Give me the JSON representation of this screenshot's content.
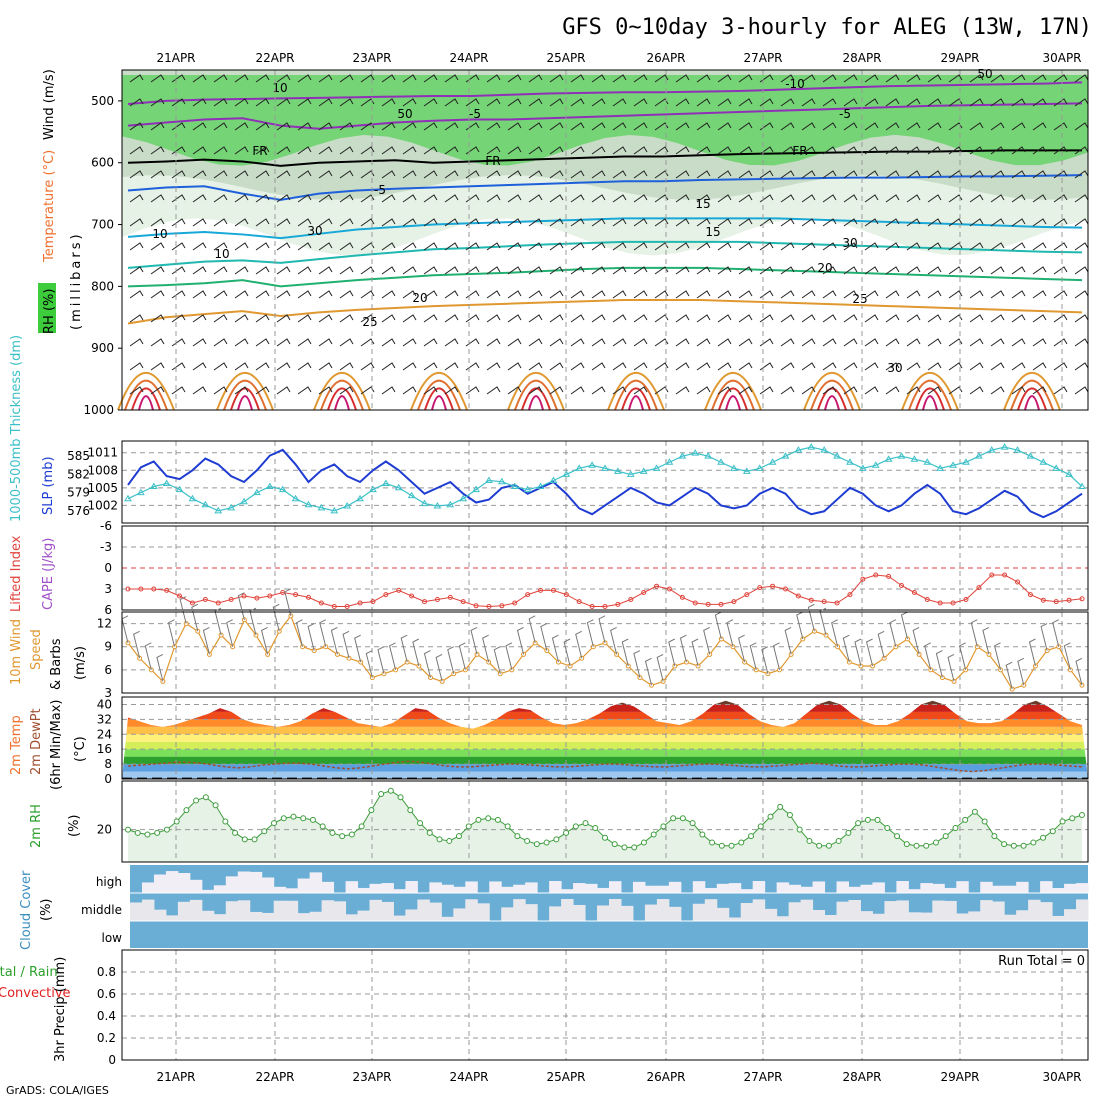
{
  "title": "GFS 0~10day 3-hourly for ALEG (13W, 17N)",
  "footer": "GrADS: COLA/IGES",
  "run_total": "Run Total = 0",
  "dates": [
    "21APR",
    "22APR",
    "23APR",
    "24APR",
    "25APR",
    "26APR",
    "27APR",
    "28APR",
    "29APR",
    "30APR"
  ],
  "colors": {
    "rh_green": "#3ccc3c",
    "slp": "#1e3cd2",
    "thickness": "#3cc0c8",
    "lifted": "#e0443c",
    "cape": "#a050c8",
    "wind": "#e09830",
    "rh2m": "#3c9c3c",
    "cloud": "#6aaed6",
    "temp_label": "#f07030",
    "precip_total": "#2ca02c",
    "precip_conv": "#e02020"
  },
  "chart_data": [
    {
      "type": "heatmap",
      "panel": "upper_air",
      "ylabel_parts": [
        "RH (%)",
        "Temperature (°C)",
        "Wind (m/s)",
        "(millibars)"
      ],
      "y_ticks": [
        "500",
        "600",
        "700",
        "800",
        "900",
        "1000"
      ],
      "ylim": [
        450,
        1000
      ],
      "contour_labels": [
        "10",
        "-5",
        "-10",
        "-5",
        "FR",
        "FR",
        "FR",
        "-5",
        "10",
        "15",
        "10",
        "15",
        "20",
        "25",
        "20",
        "25",
        "30",
        "50",
        "30",
        "30",
        "50"
      ],
      "isotherms": [
        {
          "label": "-10",
          "p": [
            505,
            500,
            498,
            497,
            496,
            495,
            494,
            493,
            492,
            492,
            490,
            488,
            487,
            486,
            486,
            485,
            484,
            482,
            480,
            478,
            476,
            475,
            474,
            473,
            472,
            470
          ]
        },
        {
          "label": "-5",
          "p": [
            540,
            535,
            530,
            528,
            540,
            545,
            540,
            535,
            532,
            530,
            530,
            528,
            526,
            524,
            522,
            520,
            518,
            516,
            514,
            512,
            510,
            508,
            507,
            506,
            505,
            504
          ]
        },
        {
          "label": "FR",
          "p": [
            600,
            598,
            595,
            598,
            605,
            600,
            598,
            596,
            600,
            598,
            596,
            594,
            592,
            590,
            590,
            588,
            586,
            585,
            584,
            583,
            582,
            582,
            581,
            580,
            580,
            580
          ]
        },
        {
          "label": "-5",
          "p": [
            645,
            640,
            638,
            650,
            660,
            650,
            645,
            642,
            640,
            638,
            636,
            634,
            632,
            630,
            630,
            628,
            627,
            626,
            625,
            624,
            624,
            623,
            622,
            622,
            621,
            620
          ]
        },
        {
          "label": "10",
          "p": [
            720,
            715,
            712,
            716,
            722,
            715,
            708,
            704,
            700,
            698,
            696,
            694,
            692,
            690,
            690,
            690,
            690,
            690,
            692,
            694,
            696,
            698,
            700,
            702,
            704,
            705
          ]
        },
        {
          "label": "15",
          "p": [
            770,
            765,
            760,
            758,
            762,
            756,
            750,
            745,
            740,
            738,
            735,
            732,
            730,
            728,
            728,
            728,
            728,
            730,
            732,
            734,
            736,
            738,
            740,
            742,
            744,
            745
          ]
        },
        {
          "label": "20",
          "p": [
            800,
            798,
            795,
            790,
            800,
            795,
            790,
            786,
            782,
            780,
            778,
            775,
            772,
            770,
            770,
            770,
            772,
            774,
            776,
            778,
            780,
            782,
            784,
            786,
            788,
            790
          ]
        },
        {
          "label": "25",
          "p": [
            860,
            850,
            845,
            840,
            848,
            842,
            838,
            835,
            832,
            830,
            828,
            826,
            824,
            822,
            822,
            822,
            824,
            826,
            828,
            830,
            832,
            834,
            836,
            838,
            840,
            842
          ]
        }
      ]
    },
    {
      "type": "line",
      "panel": "slp_thickness",
      "ylabel_left": "1000-500mb Thickness (dm)",
      "ylabel_right": "SLP (mb)",
      "left_ticks": [
        "585",
        "582",
        "579",
        "576"
      ],
      "right_ticks": [
        "1011",
        "1008",
        "1005",
        "1002"
      ],
      "series": [
        {
          "name": "SLP (mb)",
          "unit": "mb",
          "values": [
            1005.5,
            1008.5,
            1009.5,
            1007,
            1006.5,
            1008,
            1010,
            1009,
            1007,
            1006,
            1008,
            1010.5,
            1011.5,
            1009,
            1006,
            1008,
            1009,
            1007,
            1006,
            1008,
            1009.5,
            1008,
            1006,
            1004,
            1005,
            1006,
            1004,
            1002.5,
            1003,
            1005,
            1005.5,
            1004,
            1005,
            1006,
            1004,
            1001.5,
            1000.5,
            1002,
            1003.5,
            1005,
            1004,
            1002.5,
            1002,
            1003.5,
            1005,
            1004,
            1002,
            1001.5,
            1002,
            1004,
            1005,
            1004,
            1001.5,
            1000.5,
            1001,
            1003,
            1005,
            1004,
            1002,
            1001,
            1002,
            1004,
            1005.5,
            1004,
            1001,
            1000.5,
            1001.5,
            1003,
            1004.5,
            1003.5,
            1001,
            1000,
            1001,
            1002.5,
            1004
          ]
        },
        {
          "name": "1000-500mb Thickness (dm)",
          "unit": "dm",
          "values": [
            578,
            579,
            580,
            580.5,
            579.5,
            578,
            577,
            576,
            576.5,
            577.5,
            579,
            580,
            579.5,
            578,
            577,
            576.5,
            576,
            576.8,
            578,
            579.5,
            580.5,
            579.8,
            578.5,
            577.2,
            576.8,
            577,
            578,
            579.5,
            581,
            580.8,
            580,
            579.5,
            580,
            581,
            582,
            583,
            583.5,
            583,
            582.5,
            582,
            582.5,
            583,
            584,
            585,
            585.5,
            585,
            584,
            583,
            582.5,
            583,
            584,
            585,
            586,
            586.5,
            586,
            585,
            584,
            583,
            583.5,
            584.5,
            585,
            584.5,
            584,
            583,
            583.5,
            584,
            585,
            586,
            586.5,
            586,
            585,
            584,
            583,
            582,
            580
          ]
        }
      ]
    },
    {
      "type": "line",
      "panel": "stability",
      "ylabel": [
        "Lifted Index",
        "CAPE (J/kg)"
      ],
      "y_ticks": [
        "-6",
        "-3",
        "0",
        "3",
        "6"
      ],
      "ylim": [
        -6,
        6
      ],
      "series": [
        {
          "name": "Lifted Index",
          "values": [
            3,
            3,
            3,
            3.2,
            4,
            5,
            4.5,
            5,
            4.5,
            4,
            4.3,
            4,
            3.5,
            3.8,
            4.2,
            5,
            5.5,
            5.5,
            5,
            4.8,
            3.8,
            3.2,
            4,
            4.8,
            4.5,
            4.2,
            4.8,
            5.4,
            5.5,
            5.4,
            5,
            3.8,
            3.2,
            3.2,
            3.8,
            4.8,
            5.5,
            5.5,
            5.2,
            4.5,
            3.5,
            2.6,
            3,
            4.2,
            5,
            5.2,
            5.2,
            4.8,
            3.8,
            2.8,
            2.6,
            3,
            4,
            4.6,
            4.8,
            5,
            3.8,
            1.6,
            1,
            1.2,
            2.5,
            3.5,
            4.5,
            5,
            5,
            4.5,
            2.8,
            1,
            1,
            2,
            3.8,
            4.6,
            4.8,
            4.6,
            4.4
          ]
        },
        {
          "name": "CAPE (J/kg)",
          "values": []
        }
      ]
    },
    {
      "type": "line",
      "panel": "wind10m",
      "ylabel": [
        "10m Wind",
        "Speed",
        "(m/s)",
        "& Barbs"
      ],
      "y_ticks": [
        "12",
        "9",
        "6",
        "3"
      ],
      "ylim": [
        3,
        13.5
      ],
      "series": [
        {
          "name": "10m Wind Speed",
          "values": [
            9.5,
            7.5,
            6,
            4.5,
            9,
            12,
            11,
            8,
            10.5,
            9,
            12.5,
            10.5,
            8,
            11,
            13,
            9,
            8.5,
            9,
            8,
            7.5,
            7,
            5,
            5.5,
            6,
            7,
            6.5,
            5,
            4.5,
            5.5,
            6,
            8,
            7,
            5.5,
            6,
            8,
            9.5,
            8.5,
            7,
            6.5,
            7.5,
            9,
            9.5,
            8,
            6.5,
            5,
            4,
            4.5,
            6.5,
            7,
            6.5,
            8,
            10,
            9,
            7,
            6,
            5.5,
            6,
            8,
            10,
            11,
            10.5,
            9,
            7,
            6.5,
            6.5,
            7.5,
            9,
            10,
            8,
            6,
            5,
            4.5,
            6,
            9,
            8,
            6,
            3.5,
            4,
            6.5,
            8.5,
            9,
            6,
            4
          ]
        }
      ]
    },
    {
      "type": "area",
      "panel": "temp2m",
      "ylabel": [
        "2m Temp",
        "2m DewPt",
        "(6hr Min/Max)",
        "(°C)"
      ],
      "y_ticks": [
        "40",
        "32",
        "24",
        "16",
        "8",
        "0"
      ],
      "ylim": [
        0,
        44
      ],
      "series": [
        {
          "name": "2m Temp",
          "values": [
            33,
            31,
            29,
            28,
            29,
            31,
            33,
            35,
            38,
            36,
            32,
            30,
            29,
            28,
            29,
            31,
            35,
            38,
            36,
            33,
            30,
            29,
            28,
            30,
            34,
            38,
            37,
            33,
            30,
            28,
            27,
            29,
            32,
            36,
            38,
            37,
            33,
            30,
            29,
            30,
            32,
            35,
            39,
            41,
            39,
            35,
            31,
            30,
            29,
            31,
            35,
            40,
            42,
            40,
            35,
            31,
            29,
            28,
            30,
            35,
            40,
            42,
            40,
            35,
            31,
            29,
            29,
            31,
            35,
            40,
            42,
            40,
            35,
            31,
            30,
            30,
            31,
            35,
            40,
            42,
            39,
            35,
            31,
            29
          ]
        },
        {
          "name": "2m DewPt",
          "values": [
            7,
            7.5,
            8,
            8.5,
            9,
            9,
            8.5,
            7.5,
            6.5,
            6,
            6.5,
            7.5,
            8,
            8.5,
            8.5,
            8,
            7,
            6,
            5.5,
            6,
            7,
            8,
            9,
            9.5,
            9,
            8,
            7,
            6.5,
            6.5,
            7,
            7.5,
            8,
            8,
            7.5,
            7,
            6.5,
            6.5,
            7,
            7.5,
            8,
            8,
            7.5,
            7,
            6.5,
            6.5,
            7,
            7.5,
            8,
            8,
            7.5,
            7,
            6.5,
            6.5,
            7,
            7.5,
            8,
            8.5,
            8,
            7,
            6.5,
            6.5,
            7,
            7.5,
            8,
            8,
            7.5,
            6.5,
            5.5,
            4.5,
            4,
            4.5,
            5.5,
            6.5,
            7.5,
            8,
            8,
            7.5,
            7,
            6.5
          ]
        }
      ]
    },
    {
      "type": "area",
      "panel": "rh2m",
      "ylabel": [
        "2m RH",
        "(%)"
      ],
      "y_ticks": [
        "20"
      ],
      "ylim": [
        0,
        50
      ],
      "series": [
        {
          "name": "2m RH",
          "values": [
            20,
            18,
            17,
            18,
            20,
            25,
            32,
            38,
            40,
            35,
            25,
            18,
            14,
            14,
            19,
            24,
            27,
            28,
            27,
            26,
            22,
            18,
            16,
            17,
            22,
            32,
            42,
            44,
            40,
            32,
            24,
            18,
            14,
            13,
            16,
            22,
            26,
            27,
            26,
            22,
            16,
            13,
            11,
            12,
            14,
            18,
            22,
            24,
            21,
            15,
            11,
            9,
            9,
            12,
            17,
            22,
            27,
            27,
            24,
            17,
            12,
            10,
            10,
            12,
            16,
            22,
            28,
            34,
            29,
            20,
            13,
            10,
            10,
            13,
            18,
            24,
            26,
            26,
            21,
            16,
            11,
            10,
            10,
            12,
            16,
            21,
            26,
            31,
            25,
            16,
            11,
            10,
            10,
            12,
            15,
            19,
            25,
            27,
            29
          ]
        }
      ]
    },
    {
      "type": "heatmap",
      "panel": "cloud",
      "ylabel": [
        "Cloud Cover",
        "(%)"
      ],
      "y_ticks": [
        "high",
        "middle",
        "low"
      ]
    },
    {
      "type": "bar",
      "panel": "precip",
      "ylabel": [
        "Total / Rain",
        "Convective",
        "3hr Precip (mm)"
      ],
      "y_ticks": [
        "0.8",
        "0.6",
        "0.4",
        "0.2",
        "0"
      ],
      "ylim": [
        0,
        1
      ],
      "series": [
        {
          "name": "Total / Rain",
          "values": []
        },
        {
          "name": "Convective",
          "values": []
        }
      ]
    }
  ]
}
